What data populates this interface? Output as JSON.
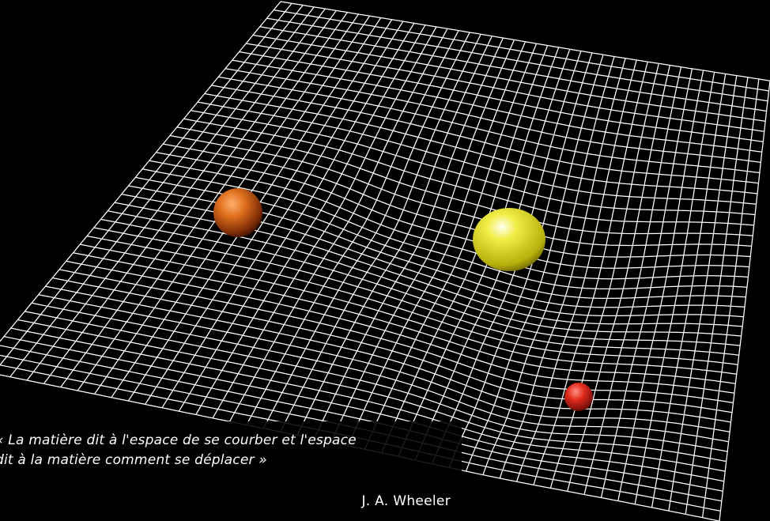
{
  "quote": {
    "text": "« La matière dit à l'espace de se courber et l'espace\ndit à la matière comment se déplacer »",
    "author": "J. A. Wheeler"
  },
  "scene": {
    "background": "#000000",
    "grid_color": "#ffffff",
    "bodies": [
      {
        "name": "orange-planet",
        "color": "#e0701e"
      },
      {
        "name": "yellow-star",
        "color": "#e6e020"
      },
      {
        "name": "red-moon",
        "color": "#e02a1c"
      }
    ]
  }
}
